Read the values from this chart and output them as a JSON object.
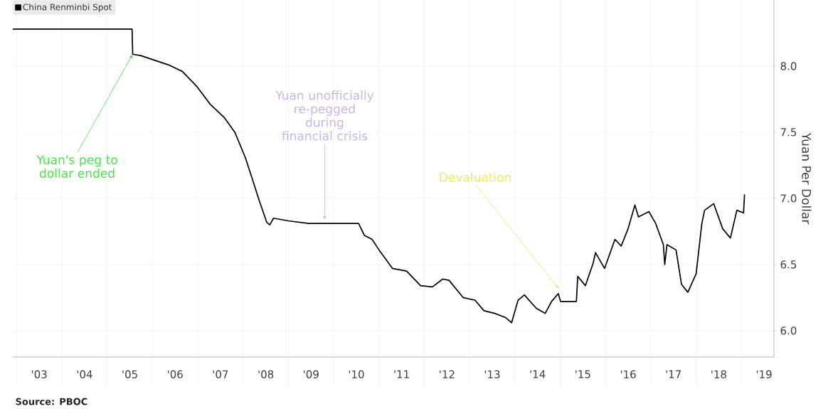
{
  "chart_data": {
    "type": "line",
    "ylabel": "Yuan Per Dollar",
    "annotations": [
      {
        "text": "Yuan's peg to dollar ended",
        "x": "2005-07-25",
        "y": 8.09
      },
      {
        "text": "Yuan unofficially re-pegged during financial crisis",
        "x": "2009-10-20",
        "y": 6.82
      },
      {
        "text": "Devaluation",
        "x": "2015-01-04",
        "y": 6.3
      },
      "Source: PBOC"
    ],
    "series": [
      {
        "name": "China Renminbi Spot",
        "color": "#000000",
        "x": [
          "2002-12-01",
          "2005-07-20",
          "2005-07-25",
          "2005-09-27",
          "2006-05-08",
          "2006-08-29",
          "2006-12-20",
          "2007-04-12",
          "2007-08-03",
          "2007-10-26",
          "2008-01-18",
          "2008-03-14",
          "2008-05-11",
          "2008-07-09",
          "2008-08-03",
          "2008-09-02",
          "2009-01-01",
          "2009-06-13",
          "2010-01-22",
          "2010-07-20",
          "2010-09-05",
          "2010-11-06",
          "2011-01-01",
          "2011-04-20",
          "2011-08-11",
          "2011-12-02",
          "2012-03-06",
          "2012-05-29",
          "2012-07-19",
          "2012-11-09",
          "2013-02-13",
          "2013-04-27",
          "2013-07-23",
          "2013-10-15",
          "2013-12-05",
          "2014-01-26",
          "2014-03-18",
          "2014-06-21",
          "2014-09-02",
          "2014-10-23",
          "2014-12-16",
          "2015-01-04",
          "2015-05-11",
          "2015-05-22",
          "2015-07-23",
          "2015-09-23",
          "2015-10-12",
          "2015-12-24",
          "2016-03-17",
          "2016-05-07",
          "2016-07-01",
          "2016-08-25",
          "2016-09-23",
          "2016-12-16",
          "2017-02-09",
          "2017-04-12",
          "2017-04-23",
          "2017-05-11",
          "2017-07-23",
          "2017-09-05",
          "2017-10-26",
          "2018-01-01",
          "2018-02-16",
          "2018-03-10",
          "2018-05-22",
          "2018-08-03",
          "2018-10-04",
          "2018-11-25",
          "2019-01-18",
          "2019-01-26"
        ],
        "values": [
          8.28,
          8.28,
          8.09,
          8.08,
          8.01,
          7.96,
          7.85,
          7.71,
          7.61,
          7.5,
          7.31,
          7.15,
          6.98,
          6.82,
          6.8,
          6.85,
          6.83,
          6.81,
          6.81,
          6.81,
          6.72,
          6.69,
          6.61,
          6.47,
          6.45,
          6.34,
          6.33,
          6.39,
          6.38,
          6.25,
          6.23,
          6.15,
          6.13,
          6.1,
          6.06,
          6.23,
          6.27,
          6.17,
          6.13,
          6.22,
          6.28,
          6.22,
          6.22,
          6.41,
          6.34,
          6.51,
          6.59,
          6.47,
          6.69,
          6.64,
          6.77,
          6.95,
          6.86,
          6.9,
          6.81,
          6.65,
          6.5,
          6.65,
          6.61,
          6.35,
          6.29,
          6.43,
          6.81,
          6.91,
          6.96,
          6.77,
          6.7,
          6.91,
          6.89,
          7.03
        ]
      }
    ],
    "xlim": [
      "2002-12-01",
      "2019-09-20"
    ],
    "ylim": [
      5.8,
      8.5
    ],
    "xticks": [
      {
        "value": "2003-07-02",
        "label": "'03"
      },
      {
        "value": "2004-07-02",
        "label": "'04"
      },
      {
        "value": "2005-07-02",
        "label": "'05"
      },
      {
        "value": "2006-07-02",
        "label": "'06"
      },
      {
        "value": "2007-07-02",
        "label": "'07"
      },
      {
        "value": "2008-07-02",
        "label": "'08"
      },
      {
        "value": "2009-07-02",
        "label": "'09"
      },
      {
        "value": "2010-07-02",
        "label": "'10"
      },
      {
        "value": "2011-07-02",
        "label": "'11"
      },
      {
        "value": "2012-07-02",
        "label": "'12"
      },
      {
        "value": "2013-07-02",
        "label": "'13"
      },
      {
        "value": "2014-07-02",
        "label": "'14"
      },
      {
        "value": "2015-07-02",
        "label": "'15"
      },
      {
        "value": "2016-07-02",
        "label": "'16"
      },
      {
        "value": "2017-07-02",
        "label": "'17"
      },
      {
        "value": "2018-07-02",
        "label": "'18"
      },
      {
        "value": "2019-07-02",
        "label": "'19"
      }
    ],
    "yticks": [
      {
        "value": 6.0,
        "label": "6.0"
      },
      {
        "value": 6.5,
        "label": "6.5"
      },
      {
        "value": 7.0,
        "label": "7.0"
      },
      {
        "value": 7.5,
        "label": "7.5"
      },
      {
        "value": 8.0,
        "label": "8.0"
      }
    ],
    "grid": true,
    "legend": "top left",
    "marker": "none",
    "line_style": "solid"
  }
}
